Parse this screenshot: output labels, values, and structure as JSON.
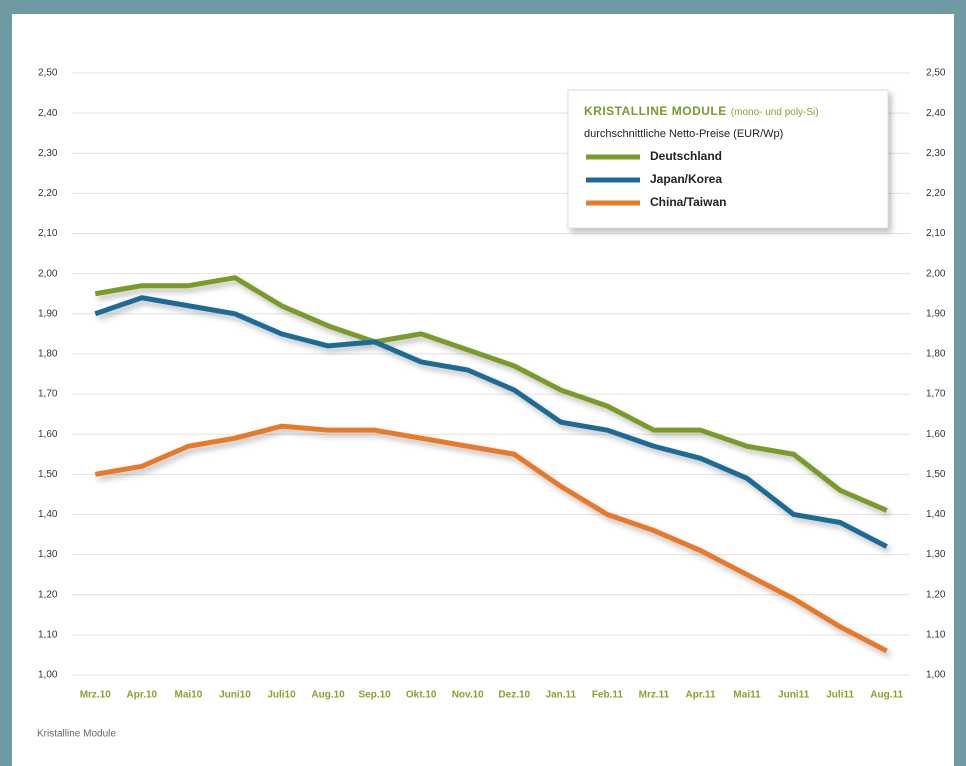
{
  "chart_data": {
    "type": "line",
    "legend_title": "KRISTALLINE MODULE",
    "legend_title_note": "(mono- und poly-Si)",
    "subtitle": "durchschnittliche Netto-Preise (EUR/Wp)",
    "source": "Kristalline Module",
    "categories": [
      "Mrz.10",
      "Apr.10",
      "Mai10",
      "Juni10",
      "Juli10",
      "Aug.10",
      "Sep.10",
      "Okt.10",
      "Nov.10",
      "Dez.10",
      "Jan.11",
      "Feb.11",
      "Mrz.11",
      "Apr.11",
      "Mai11",
      "Juni11",
      "Juli11",
      "Aug.11"
    ],
    "series": [
      {
        "name": "Deutschland",
        "color": "#7a9a2c",
        "values": [
          1.95,
          1.97,
          1.97,
          1.99,
          1.92,
          1.87,
          1.83,
          1.85,
          1.81,
          1.77,
          1.71,
          1.67,
          1.61,
          1.61,
          1.57,
          1.55,
          1.46,
          1.41
        ]
      },
      {
        "name": "Japan/Korea",
        "color": "#1b6a96",
        "values": [
          1.9,
          1.94,
          1.92,
          1.9,
          1.85,
          1.82,
          1.83,
          1.78,
          1.76,
          1.71,
          1.63,
          1.61,
          1.57,
          1.54,
          1.49,
          1.4,
          1.38,
          1.32
        ]
      },
      {
        "name": "China/Taiwan",
        "color": "#e9792b",
        "values": [
          1.5,
          1.52,
          1.57,
          1.59,
          1.62,
          1.61,
          1.61,
          1.59,
          1.57,
          1.55,
          1.47,
          1.4,
          1.36,
          1.31,
          1.25,
          1.19,
          1.12,
          1.06
        ]
      }
    ],
    "ylim": [
      1.0,
      2.5
    ],
    "yticks": [
      {
        "value": 1.0,
        "label": "1,00"
      },
      {
        "value": 1.1,
        "label": "1,10"
      },
      {
        "value": 1.2,
        "label": "1,20"
      },
      {
        "value": 1.3,
        "label": "1,30"
      },
      {
        "value": 1.4,
        "label": "1,40"
      },
      {
        "value": 1.5,
        "label": "1,50"
      },
      {
        "value": 1.6,
        "label": "1,60"
      },
      {
        "value": 1.7,
        "label": "1,70"
      },
      {
        "value": 1.8,
        "label": "1,80"
      },
      {
        "value": 1.9,
        "label": "1,90"
      },
      {
        "value": 2.0,
        "label": "2,00"
      },
      {
        "value": 2.1,
        "label": "2,10"
      },
      {
        "value": 2.2,
        "label": "2,20"
      },
      {
        "value": 2.3,
        "label": "2,30"
      },
      {
        "value": 2.4,
        "label": "2,40"
      },
      {
        "value": 2.5,
        "label": "2,50"
      }
    ],
    "grid": true,
    "legend": "upper right"
  }
}
